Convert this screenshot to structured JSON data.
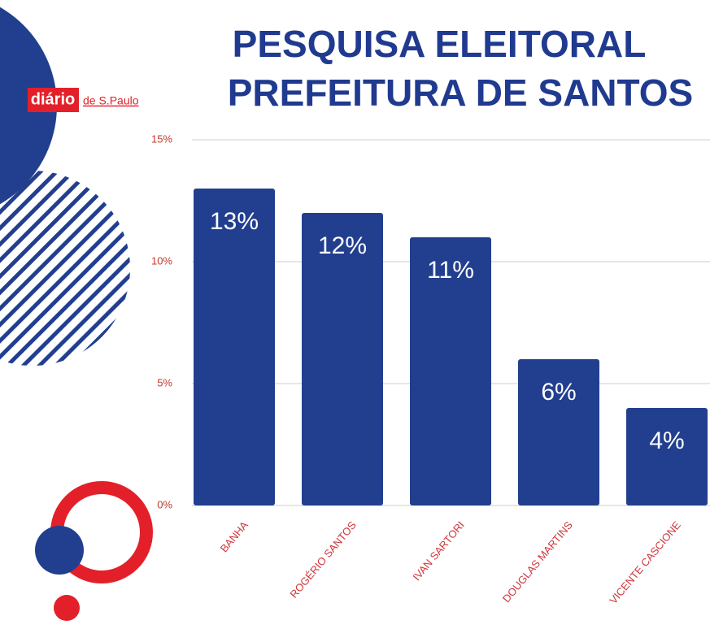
{
  "logo": {
    "brand": "diário",
    "suffix": "de S.Paulo"
  },
  "chart_data": {
    "type": "bar",
    "title": "PESQUISA ELEITORAL",
    "subtitle": "PREFEITURA DE SANTOS",
    "categories": [
      "BANHA",
      "ROGÉRIO SANTOS",
      "IVAN SARTORI",
      "DOUGLAS MARTINS",
      "VICENTE CASCIONE"
    ],
    "values": [
      13,
      12,
      11,
      6,
      4
    ],
    "value_labels": [
      "13%",
      "12%",
      "11%",
      "6%",
      "4%"
    ],
    "color": "#223f8f",
    "ylim": [
      0,
      15
    ],
    "yticks": [
      {
        "value": 0,
        "label": "0%"
      },
      {
        "value": 5,
        "label": "5%"
      },
      {
        "value": 10,
        "label": "10%"
      },
      {
        "value": 15,
        "label": "15%"
      }
    ],
    "grid": true
  }
}
